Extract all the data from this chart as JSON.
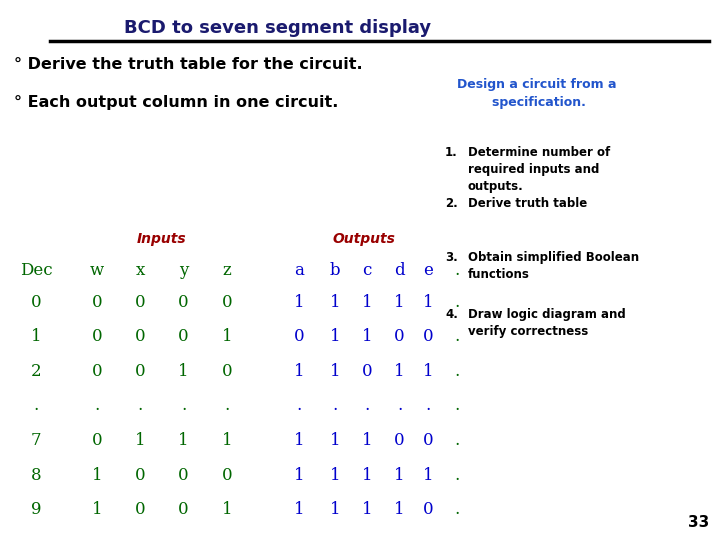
{
  "title": "BCD to seven segment display",
  "bullet1": "° Derive the truth table for the circuit.",
  "bullet2": "° Each output column in one circuit.",
  "design_title": "Design a circuit from a\n        specification.",
  "steps": [
    "Determine number of\nrequired inputs and\noutputs.",
    "Derive truth table",
    "Obtain simplified Boolean\nfunctions",
    "Draw logic diagram and\nverify correctness"
  ],
  "inputs_label": "Inputs",
  "outputs_label": "Outputs",
  "col_headers": [
    "Dec",
    "w",
    "x",
    "y",
    "z",
    "a",
    "b",
    "c",
    "d",
    "e",
    "."
  ],
  "rows": [
    [
      "0",
      "0",
      "0",
      "0",
      "0",
      "1",
      "1",
      "1",
      "1",
      "1",
      "."
    ],
    [
      "1",
      "0",
      "0",
      "0",
      "1",
      "0",
      "1",
      "1",
      "0",
      "0",
      "."
    ],
    [
      "2",
      "0",
      "0",
      "1",
      "0",
      "1",
      "1",
      "0",
      "1",
      "1",
      "."
    ],
    [
      ".",
      ".",
      ".",
      ".",
      ".",
      ".",
      ".",
      ".",
      ".",
      ".",
      "."
    ],
    [
      "7",
      "0",
      "1",
      "1",
      "1",
      "1",
      "1",
      "1",
      "0",
      "0",
      "."
    ],
    [
      "8",
      "1",
      "0",
      "0",
      "0",
      "1",
      "1",
      "1",
      "1",
      "1",
      "."
    ],
    [
      "9",
      "1",
      "0",
      "0",
      "1",
      "1",
      "1",
      "1",
      "1",
      "0",
      "."
    ]
  ],
  "bg_color": "#ffffff",
  "title_color": "#1a1a6e",
  "bullet_color": "#000000",
  "design_title_color": "#2255cc",
  "step_num_color": "#000000",
  "step_text_color": "#000000",
  "inputs_label_color": "#990000",
  "outputs_label_color": "#990000",
  "dec_col_color": "#006600",
  "input_col_color": "#006600",
  "output_col_color": "#0000cc",
  "dot_col_color": "#006600",
  "page_number": "33"
}
